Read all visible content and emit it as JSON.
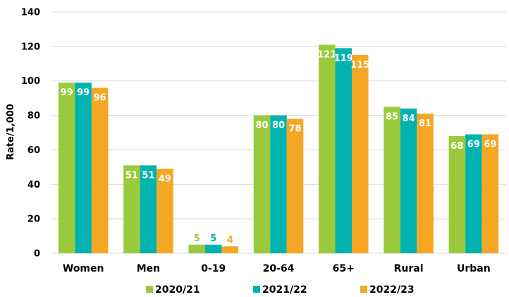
{
  "chart_data": {
    "type": "bar",
    "ylabel": "Rate/1,000",
    "ylim": [
      0,
      140
    ],
    "yticks": [
      0,
      20,
      40,
      60,
      80,
      100,
      120,
      140
    ],
    "grid": true,
    "legend_position": "bottom",
    "categories": [
      "Women",
      "Men",
      "0-19",
      "20-64",
      "65+",
      "Rural",
      "Urban"
    ],
    "series": [
      {
        "name": "2020/21",
        "color": "#9ACA3C",
        "values": [
          99,
          51,
          5,
          80,
          121,
          85,
          68
        ]
      },
      {
        "name": "2021/22",
        "color": "#00B3B0",
        "values": [
          99,
          51,
          5,
          80,
          119,
          84,
          69
        ]
      },
      {
        "name": "2022/23",
        "color": "#F5A623",
        "values": [
          96,
          49,
          4,
          78,
          115,
          81,
          69
        ]
      }
    ]
  }
}
